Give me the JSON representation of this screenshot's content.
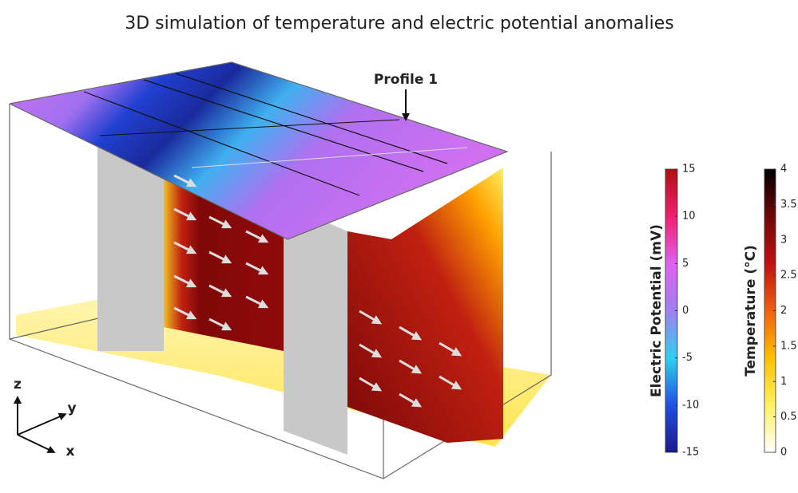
{
  "title": "3D simulation of temperature and electric potential anomalies",
  "annotation": "Profile 1",
  "axes": {
    "z": "z",
    "y": "y",
    "x": "x"
  },
  "colorbars": [
    {
      "label": "Electric Potential (mV)",
      "lim": [
        -15,
        15
      ],
      "ticks": [
        15,
        10,
        5,
        0,
        -5,
        -10,
        -15
      ],
      "colors": [
        "#1a1a8c",
        "#2050e0",
        "#30d0f0",
        "#a080f0",
        "#e060f0",
        "#f02070",
        "#b01010"
      ]
    },
    {
      "label": "Temperature (°C)",
      "lim": [
        0,
        4
      ],
      "ticks": [
        4,
        3.5,
        3,
        2.5,
        2,
        1.5,
        1,
        0.5,
        0
      ],
      "colors": [
        "#ffffff",
        "#fff060",
        "#ffc000",
        "#f06010",
        "#c01010",
        "#700808",
        "#000000"
      ]
    }
  ]
}
